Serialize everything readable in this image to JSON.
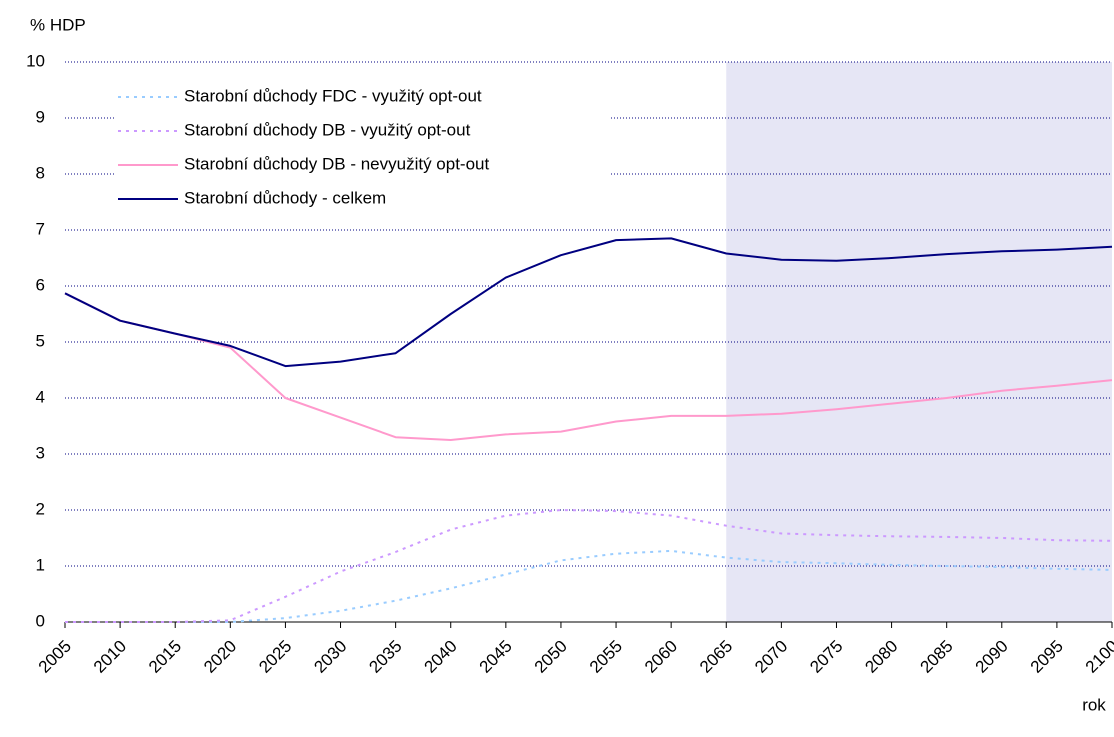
{
  "chart_data": {
    "type": "line",
    "y_label": "% HDP",
    "x_label": "rok",
    "x": [
      2005,
      2010,
      2015,
      2020,
      2025,
      2030,
      2035,
      2040,
      2045,
      2050,
      2055,
      2060,
      2065,
      2070,
      2075,
      2080,
      2085,
      2090,
      2095,
      2100
    ],
    "series": [
      {
        "name": "Starobní důchody FDC - využitý opt-out",
        "color": "#99ccff",
        "dash": true,
        "values": [
          0,
          0,
          0,
          0,
          0.07,
          0.2,
          0.38,
          0.6,
          0.85,
          1.1,
          1.22,
          1.27,
          1.15,
          1.07,
          1.05,
          1.02,
          1.0,
          0.98,
          0.95,
          0.93
        ]
      },
      {
        "name": "Starobní důchody DB - využitý opt-out",
        "color": "#cc99ff",
        "dash": true,
        "values": [
          0,
          0,
          0,
          0.03,
          0.45,
          0.9,
          1.25,
          1.65,
          1.9,
          2.0,
          1.98,
          1.9,
          1.72,
          1.58,
          1.55,
          1.53,
          1.52,
          1.5,
          1.46,
          1.45
        ]
      },
      {
        "name": "Starobní důchody DB - nevyužitý opt-out",
        "color": "#ff99cc",
        "dash": false,
        "values": [
          5.87,
          5.38,
          5.15,
          4.9,
          4.0,
          3.65,
          3.3,
          3.25,
          3.35,
          3.4,
          3.58,
          3.68,
          3.68,
          3.72,
          3.8,
          3.9,
          4.0,
          4.13,
          4.22,
          4.32
        ]
      },
      {
        "name": "Starobní důchody - celkem",
        "color": "#000080",
        "dash": false,
        "values": [
          5.87,
          5.38,
          5.15,
          4.93,
          4.57,
          4.65,
          4.8,
          5.5,
          6.15,
          6.55,
          6.82,
          6.85,
          6.58,
          6.47,
          6.45,
          6.5,
          6.57,
          6.62,
          6.65,
          6.7
        ]
      }
    ],
    "shaded_region": [
      2065,
      2100
    ],
    "shade_color": "#e6e6f5",
    "xlim": [
      2005,
      2100
    ],
    "xticks": [
      2005,
      2010,
      2015,
      2020,
      2025,
      2030,
      2035,
      2040,
      2045,
      2050,
      2055,
      2060,
      2065,
      2070,
      2075,
      2080,
      2085,
      2090,
      2095,
      2100
    ],
    "ylim": [
      0,
      10
    ],
    "yticks": [
      0,
      1,
      2,
      3,
      4,
      5,
      6,
      7,
      8,
      9,
      10
    ],
    "grid": true,
    "legend": "top-left"
  }
}
